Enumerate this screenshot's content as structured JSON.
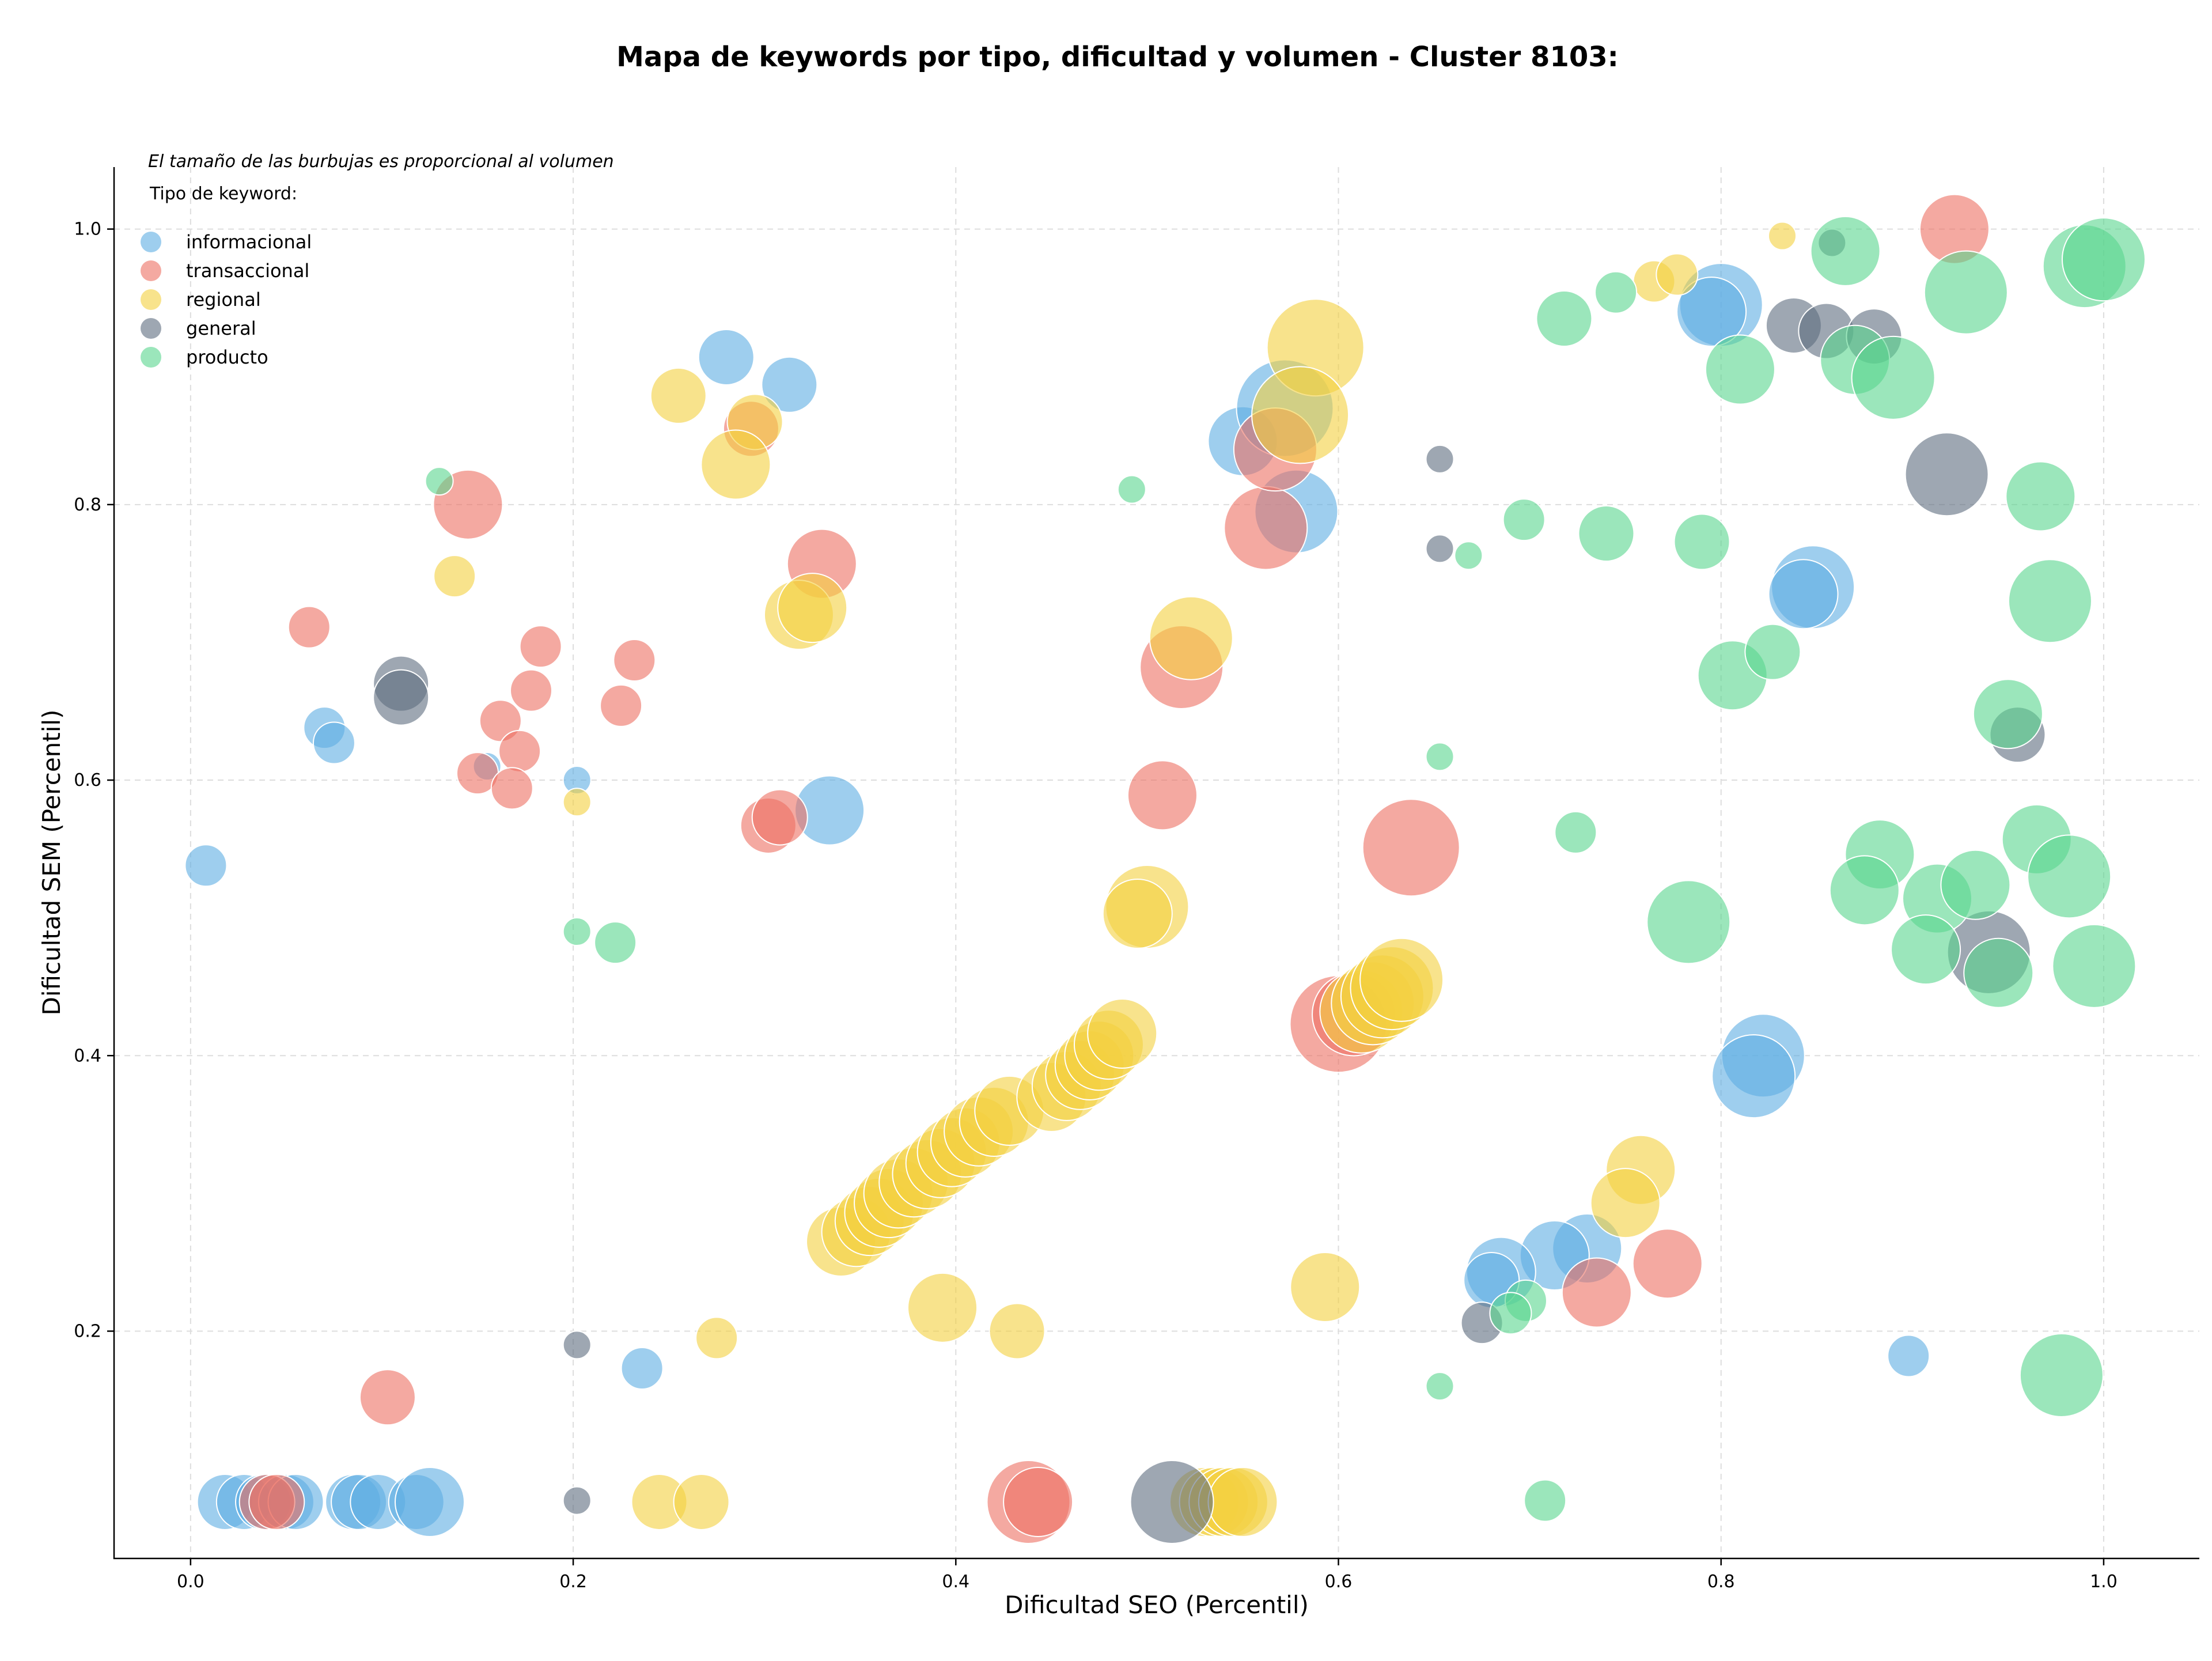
{
  "chart_data": {
    "type": "scatter",
    "title": "Mapa de keywords por tipo, dificultad y volumen - Cluster 8103:",
    "xlabel": "Dificultad SEO (Percentil)",
    "ylabel": "Dificultad SEM (Percentil)",
    "note": "El tamaño de las burbujas es proporcional al volumen",
    "legend_title": "Tipo de keyword:",
    "legend_position": "top-left",
    "grid": true,
    "xlim": [
      -0.04,
      1.05
    ],
    "ylim": [
      0.035,
      1.045
    ],
    "xticks": [
      "0.0",
      "0.2",
      "0.4",
      "0.6",
      "0.8",
      "1.0"
    ],
    "yticks": [
      "0.2",
      "0.4",
      "0.6",
      "0.8",
      "1.0"
    ],
    "colors": {
      "informacional": "#5dade2",
      "transaccional": "#ec7063",
      "regional": "#f4d03f",
      "general": "#5d6d7e",
      "producto": "#58d68d"
    },
    "series": [
      {
        "name": "informacional",
        "points": [
          [
            0.008,
            0.538,
            2
          ],
          [
            0.07,
            0.638,
            2
          ],
          [
            0.075,
            0.627,
            2
          ],
          [
            0.155,
            0.61,
            1
          ],
          [
            0.202,
            0.6,
            1
          ],
          [
            0.236,
            0.173,
            2
          ],
          [
            0.28,
            0.907,
            3
          ],
          [
            0.313,
            0.887,
            3
          ],
          [
            0.334,
            0.578,
            4
          ],
          [
            0.55,
            0.846,
            4
          ],
          [
            0.572,
            0.87,
            6
          ],
          [
            0.578,
            0.795,
            5
          ],
          [
            0.8,
            0.945,
            5
          ],
          [
            0.795,
            0.94,
            4
          ],
          [
            0.848,
            0.74,
            5
          ],
          [
            0.843,
            0.735,
            4
          ],
          [
            0.822,
            0.4,
            5
          ],
          [
            0.817,
            0.385,
            5
          ],
          [
            0.73,
            0.26,
            4
          ],
          [
            0.713,
            0.255,
            4
          ],
          [
            0.685,
            0.243,
            4
          ],
          [
            0.68,
            0.237,
            3
          ],
          [
            0.898,
            0.182,
            2
          ],
          [
            0.018,
            0.076,
            3
          ],
          [
            0.028,
            0.076,
            3
          ],
          [
            0.038,
            0.076,
            3
          ],
          [
            0.05,
            0.076,
            3
          ],
          [
            0.055,
            0.076,
            3
          ],
          [
            0.085,
            0.076,
            3
          ],
          [
            0.088,
            0.076,
            3
          ],
          [
            0.098,
            0.076,
            3
          ],
          [
            0.118,
            0.076,
            3
          ],
          [
            0.125,
            0.076,
            4
          ]
        ]
      },
      {
        "name": "transaccional",
        "points": [
          [
            0.062,
            0.711,
            2
          ],
          [
            0.145,
            0.8,
            4
          ],
          [
            0.33,
            0.757,
            4
          ],
          [
            0.183,
            0.697,
            2
          ],
          [
            0.232,
            0.687,
            2
          ],
          [
            0.178,
            0.665,
            2
          ],
          [
            0.225,
            0.654,
            2
          ],
          [
            0.162,
            0.643,
            2
          ],
          [
            0.172,
            0.621,
            2
          ],
          [
            0.15,
            0.605,
            2
          ],
          [
            0.168,
            0.594,
            2
          ],
          [
            0.302,
            0.567,
            3
          ],
          [
            0.308,
            0.573,
            3
          ],
          [
            0.293,
            0.855,
            3
          ],
          [
            0.508,
            0.589,
            4
          ],
          [
            0.518,
            0.682,
            5
          ],
          [
            0.562,
            0.783,
            5
          ],
          [
            0.567,
            0.84,
            5
          ],
          [
            0.638,
            0.551,
            6
          ],
          [
            0.6,
            0.423,
            6
          ],
          [
            0.608,
            0.43,
            5
          ],
          [
            0.772,
            0.249,
            4
          ],
          [
            0.735,
            0.228,
            4
          ],
          [
            0.103,
            0.152,
            3
          ],
          [
            0.922,
            1.0,
            4
          ],
          [
            0.04,
            0.076,
            3
          ],
          [
            0.045,
            0.076,
            3
          ],
          [
            0.438,
            0.076,
            5
          ],
          [
            0.443,
            0.076,
            4
          ]
        ]
      },
      {
        "name": "regional",
        "points": [
          [
            0.138,
            0.748,
            2
          ],
          [
            0.255,
            0.879,
            3
          ],
          [
            0.295,
            0.86,
            3
          ],
          [
            0.285,
            0.829,
            4
          ],
          [
            0.318,
            0.72,
            4
          ],
          [
            0.325,
            0.725,
            4
          ],
          [
            0.202,
            0.584,
            1
          ],
          [
            0.588,
            0.914,
            6
          ],
          [
            0.58,
            0.865,
            6
          ],
          [
            0.523,
            0.703,
            5
          ],
          [
            0.5,
            0.508,
            5
          ],
          [
            0.495,
            0.503,
            4
          ],
          [
            0.832,
            0.995,
            1
          ],
          [
            0.765,
            0.962,
            2
          ],
          [
            0.777,
            0.967,
            2
          ],
          [
            0.758,
            0.317,
            4
          ],
          [
            0.75,
            0.293,
            4
          ],
          [
            0.593,
            0.232,
            4
          ],
          [
            0.393,
            0.217,
            4
          ],
          [
            0.432,
            0.2,
            3
          ],
          [
            0.275,
            0.195,
            2
          ],
          [
            0.34,
            0.265,
            4
          ],
          [
            0.348,
            0.272,
            4
          ],
          [
            0.355,
            0.28,
            4
          ],
          [
            0.36,
            0.286,
            4
          ],
          [
            0.365,
            0.293,
            4
          ],
          [
            0.37,
            0.3,
            4
          ],
          [
            0.378,
            0.308,
            4
          ],
          [
            0.385,
            0.314,
            4
          ],
          [
            0.392,
            0.322,
            4
          ],
          [
            0.398,
            0.33,
            4
          ],
          [
            0.405,
            0.337,
            4
          ],
          [
            0.412,
            0.345,
            4
          ],
          [
            0.42,
            0.352,
            4
          ],
          [
            0.428,
            0.36,
            4
          ],
          [
            0.45,
            0.37,
            4
          ],
          [
            0.458,
            0.378,
            4
          ],
          [
            0.465,
            0.386,
            4
          ],
          [
            0.47,
            0.393,
            4
          ],
          [
            0.475,
            0.4,
            4
          ],
          [
            0.48,
            0.408,
            4
          ],
          [
            0.487,
            0.416,
            4
          ],
          [
            0.612,
            0.432,
            5
          ],
          [
            0.618,
            0.438,
            5
          ],
          [
            0.623,
            0.443,
            5
          ],
          [
            0.628,
            0.449,
            5
          ],
          [
            0.633,
            0.455,
            5
          ],
          [
            0.245,
            0.076,
            3
          ],
          [
            0.267,
            0.076,
            3
          ],
          [
            0.53,
            0.076,
            4
          ],
          [
            0.535,
            0.076,
            4
          ],
          [
            0.54,
            0.076,
            4
          ],
          [
            0.545,
            0.076,
            4
          ],
          [
            0.55,
            0.076,
            4
          ]
        ]
      },
      {
        "name": "general",
        "points": [
          [
            0.11,
            0.67,
            3
          ],
          [
            0.11,
            0.66,
            3
          ],
          [
            0.202,
            0.19,
            1
          ],
          [
            0.202,
            0.077,
            1
          ],
          [
            0.513,
            0.076,
            5
          ],
          [
            0.653,
            0.833,
            1
          ],
          [
            0.653,
            0.768,
            1
          ],
          [
            0.675,
            0.206,
            2
          ],
          [
            0.858,
            0.99,
            1
          ],
          [
            0.838,
            0.93,
            3
          ],
          [
            0.855,
            0.926,
            3
          ],
          [
            0.88,
            0.922,
            3
          ],
          [
            0.918,
            0.822,
            5
          ],
          [
            0.955,
            0.633,
            3
          ],
          [
            0.94,
            0.475,
            5
          ]
        ]
      },
      {
        "name": "producto",
        "points": [
          [
            0.13,
            0.817,
            1
          ],
          [
            0.202,
            0.49,
            1
          ],
          [
            0.222,
            0.482,
            2
          ],
          [
            0.492,
            0.811,
            1
          ],
          [
            0.653,
            0.617,
            1
          ],
          [
            0.668,
            0.763,
            1
          ],
          [
            0.697,
            0.789,
            2
          ],
          [
            0.718,
            0.935,
            3
          ],
          [
            0.745,
            0.954,
            2
          ],
          [
            0.74,
            0.779,
            3
          ],
          [
            0.79,
            0.773,
            3
          ],
          [
            0.724,
            0.562,
            2
          ],
          [
            0.653,
            0.16,
            1
          ],
          [
            0.698,
            0.222,
            2
          ],
          [
            0.69,
            0.213,
            2
          ],
          [
            0.708,
            0.077,
            2
          ],
          [
            0.865,
            0.984,
            4
          ],
          [
            0.928,
            0.954,
            5
          ],
          [
            0.99,
            0.973,
            5
          ],
          [
            1.0,
            0.978,
            5
          ],
          [
            0.81,
            0.898,
            4
          ],
          [
            0.87,
            0.905,
            4
          ],
          [
            0.89,
            0.892,
            5
          ],
          [
            0.967,
            0.806,
            4
          ],
          [
            0.972,
            0.73,
            5
          ],
          [
            0.806,
            0.676,
            4
          ],
          [
            0.827,
            0.693,
            3
          ],
          [
            0.95,
            0.648,
            4
          ],
          [
            0.965,
            0.557,
            4
          ],
          [
            0.883,
            0.546,
            4
          ],
          [
            0.875,
            0.52,
            4
          ],
          [
            0.913,
            0.514,
            4
          ],
          [
            0.933,
            0.524,
            4
          ],
          [
            0.982,
            0.53,
            5
          ],
          [
            0.907,
            0.477,
            4
          ],
          [
            0.945,
            0.46,
            4
          ],
          [
            0.995,
            0.465,
            5
          ],
          [
            0.783,
            0.497,
            5
          ],
          [
            0.978,
            0.168,
            5
          ]
        ]
      }
    ]
  }
}
